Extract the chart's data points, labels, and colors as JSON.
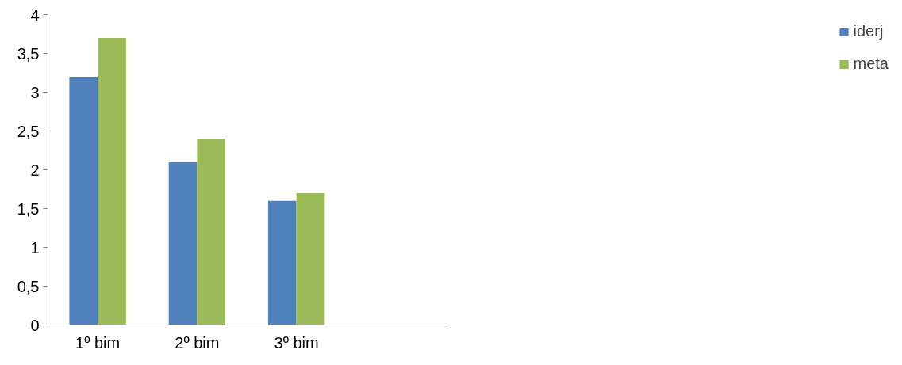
{
  "chart_data": {
    "type": "bar",
    "categories": [
      "1º bim",
      "2º bim",
      "3º bim",
      null
    ],
    "series": [
      {
        "name": "iderj",
        "color": "#4f81bd",
        "values": [
          3.2,
          2.1,
          1.6,
          null
        ]
      },
      {
        "name": "meta",
        "color": "#9bbb59",
        "values": [
          3.7,
          2.4,
          1.7,
          null
        ]
      }
    ],
    "ylim": [
      0,
      4
    ],
    "yticks": [
      0,
      {
        "value": 0.5,
        "label": "0,5"
      },
      1,
      {
        "value": 1.5,
        "label": "1,5"
      },
      2,
      {
        "value": 2.5,
        "label": "2,5"
      },
      3,
      {
        "value": 3.5,
        "label": "3,5"
      },
      4
    ],
    "grid": false,
    "legend": "right"
  }
}
